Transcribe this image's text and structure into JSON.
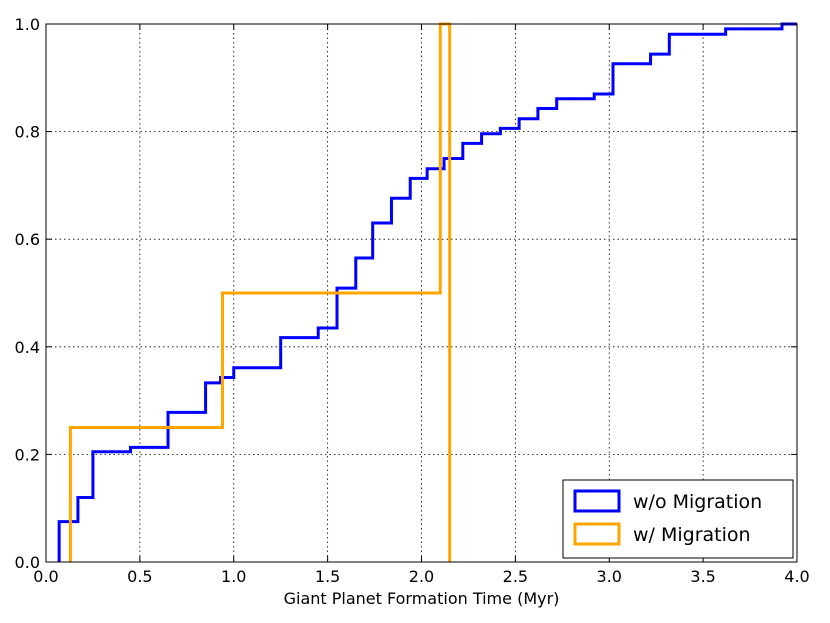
{
  "chart_data": {
    "type": "line",
    "xlabel": "Giant Planet Formation Time (Myr)",
    "ylabel": "",
    "xlim": [
      0.0,
      4.0
    ],
    "ylim": [
      0.0,
      1.0
    ],
    "x_ticks": [
      0.0,
      0.5,
      1.0,
      1.5,
      2.0,
      2.5,
      3.0,
      3.5,
      4.0
    ],
    "x_tick_labels": [
      "0.0",
      "0.5",
      "1.0",
      "1.5",
      "2.0",
      "2.5",
      "3.0",
      "3.5",
      "4.0"
    ],
    "y_ticks": [
      0.0,
      0.2,
      0.4,
      0.6,
      0.8,
      1.0
    ],
    "y_tick_labels": [
      "0.0",
      "0.2",
      "0.4",
      "0.6",
      "0.8",
      "1.0"
    ],
    "grid": true,
    "legend_position": "bottom-right",
    "series": [
      {
        "name": "w/o Migration",
        "color": "#0000ff",
        "step": "post",
        "x": [
          0.07,
          0.07,
          0.17,
          0.25,
          0.45,
          0.65,
          0.85,
          0.93,
          1.0,
          1.25,
          1.45,
          1.55,
          1.65,
          1.74,
          1.84,
          1.94,
          2.03,
          2.12,
          2.22,
          2.32,
          2.42,
          2.52,
          2.62,
          2.72,
          2.92,
          3.02,
          3.22,
          3.32,
          3.62,
          3.92,
          4.0
        ],
        "values": [
          0.0,
          0.075,
          0.12,
          0.205,
          0.213,
          0.278,
          0.333,
          0.343,
          0.361,
          0.417,
          0.435,
          0.509,
          0.565,
          0.63,
          0.676,
          0.713,
          0.731,
          0.75,
          0.778,
          0.796,
          0.806,
          0.824,
          0.843,
          0.861,
          0.87,
          0.926,
          0.944,
          0.981,
          0.991,
          1.0,
          1.0
        ]
      },
      {
        "name": "w/ Migration",
        "color": "#ffa500",
        "step": "post",
        "x": [
          0.13,
          0.13,
          0.94,
          2.1,
          2.15,
          2.15
        ],
        "values": [
          0.0,
          0.25,
          0.5,
          1.0,
          1.0,
          0.0
        ]
      }
    ]
  }
}
